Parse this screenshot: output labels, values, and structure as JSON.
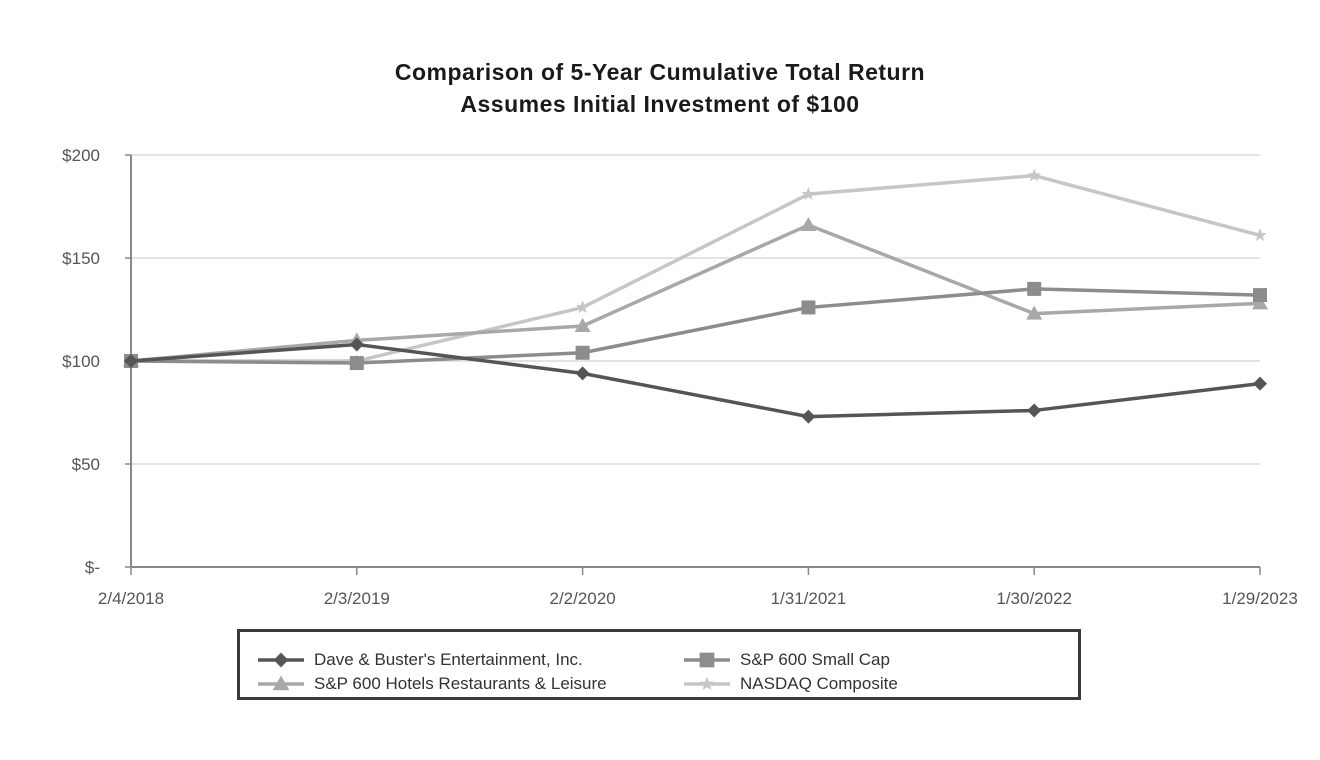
{
  "chart_data": {
    "type": "line",
    "title": "Comparison of 5-Year Cumulative Total Return",
    "subtitle": "Assumes Initial Investment of $100",
    "categories": [
      "2/4/2018",
      "2/3/2019",
      "2/2/2020",
      "1/31/2021",
      "1/30/2022",
      "1/29/2023"
    ],
    "y_ticks": [
      {
        "value": 0,
        "label": "$-"
      },
      {
        "value": 50,
        "label": "$50"
      },
      {
        "value": 100,
        "label": "$100"
      },
      {
        "value": 150,
        "label": "$150"
      },
      {
        "value": 200,
        "label": "$200"
      }
    ],
    "ylim": [
      0,
      200
    ],
    "grid": true,
    "legend_position": "bottom",
    "series": [
      {
        "name": "Dave & Buster's Entertainment, Inc.",
        "marker": "diamond",
        "color": "#555555",
        "values": [
          100,
          108,
          94,
          73,
          76,
          89
        ]
      },
      {
        "name": "S&P 600 Small Cap",
        "marker": "square",
        "color": "#8c8c8c",
        "values": [
          100,
          99,
          104,
          126,
          135,
          132
        ]
      },
      {
        "name": "S&P 600 Hotels Restaurants & Leisure",
        "marker": "triangle",
        "color": "#a8a8a8",
        "values": [
          100,
          110,
          117,
          166,
          123,
          128
        ]
      },
      {
        "name": "NASDAQ Composite",
        "marker": "star",
        "color": "#c6c6c6",
        "values": [
          100,
          100,
          126,
          181,
          190,
          161
        ]
      }
    ]
  }
}
